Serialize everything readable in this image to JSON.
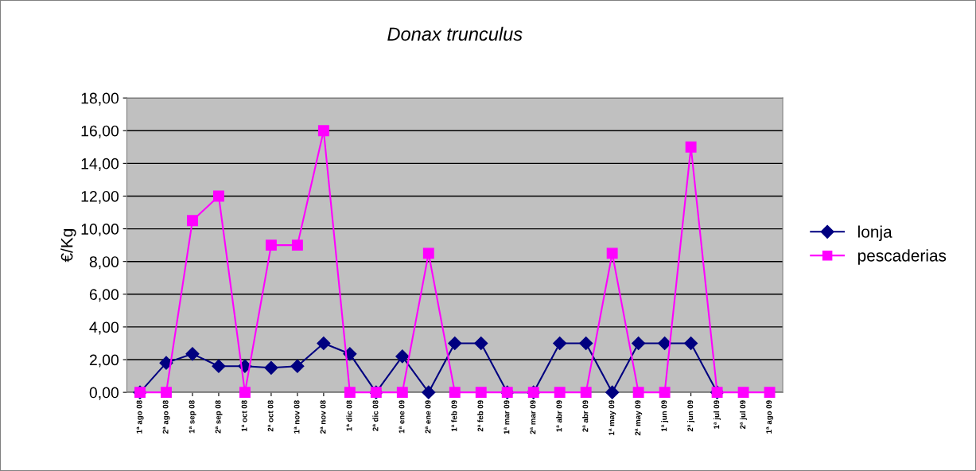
{
  "chart_data": {
    "type": "line",
    "title": "Donax trunculus",
    "ylabel": "€/Kg",
    "categories": [
      "1ª ago 08",
      "2ª ago 08",
      "1ª sep 08",
      "2ª sep 08",
      "1ª oct 08",
      "2ª oct 08",
      "1ª nov 08",
      "2ª nov 08",
      "1ª dic 08",
      "2ª dic 08",
      "1ª ene 09",
      "2ª ene 09",
      "1ª feb 09",
      "2ª feb 09",
      "1ª mar 09",
      "2ª mar 09",
      "1ª abr 09",
      "2ª abr 09",
      "1ª may 09",
      "2ª may 09",
      "1ª jun 09",
      "2ª jun 09",
      "1ª jul 09",
      "2ª jul 09",
      "1ª ago 09"
    ],
    "series": [
      {
        "name": "lonja",
        "color": "#000080",
        "marker": "diamond",
        "values": [
          0,
          1.8,
          2.35,
          1.6,
          1.6,
          1.5,
          1.6,
          3.0,
          2.35,
          0,
          2.2,
          0,
          3.0,
          3.0,
          0,
          0,
          3.0,
          3.0,
          0,
          3.0,
          3.0,
          3.0,
          0,
          null,
          null
        ]
      },
      {
        "name": "pescaderias",
        "color": "#ff00ff",
        "marker": "square",
        "values": [
          0,
          0,
          10.5,
          12.0,
          0,
          9.0,
          9.0,
          16.0,
          0,
          0,
          0,
          8.5,
          0,
          0,
          0,
          0,
          0,
          0,
          8.5,
          0,
          0,
          15.0,
          0,
          0,
          0
        ]
      }
    ],
    "ylim": [
      0,
      18
    ],
    "yticks": [
      {
        "value": 0,
        "label": "0,00"
      },
      {
        "value": 2,
        "label": "2,00"
      },
      {
        "value": 4,
        "label": "4,00"
      },
      {
        "value": 6,
        "label": "6,00"
      },
      {
        "value": 8,
        "label": "8,00"
      },
      {
        "value": 10,
        "label": "10,00"
      },
      {
        "value": 12,
        "label": "12,00"
      },
      {
        "value": 14,
        "label": "14,00"
      },
      {
        "value": 16,
        "label": "16,00"
      },
      {
        "value": 18,
        "label": "18,00"
      }
    ],
    "grid": "y",
    "legend": "right"
  }
}
